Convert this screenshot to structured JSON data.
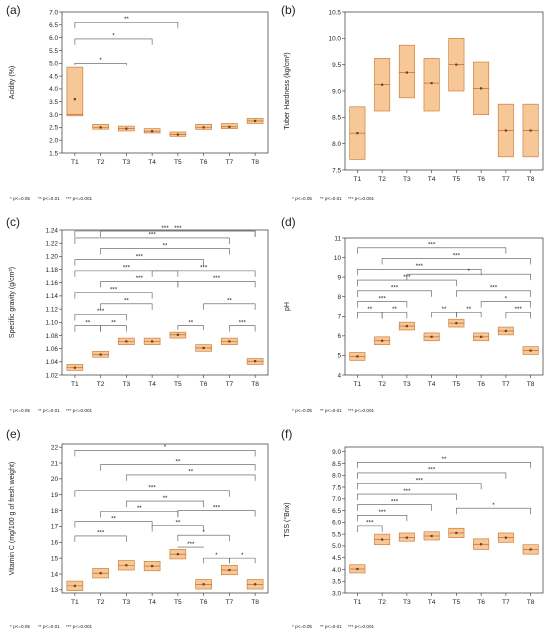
{
  "colors": {
    "box_fill": "#f7c897",
    "box_stroke": "#c9712c",
    "median": "#b35a1f",
    "mean": "#7a3a12",
    "axis": "#333333",
    "bracket": "#555555"
  },
  "footnote": {
    "p1": "* p<=0.05",
    "p2": "** p<=0.01",
    "p3": "*** p<=0.001"
  },
  "chart_data": [
    {
      "type": "box",
      "panel_label": "(a)",
      "ylabel": "Acidity (%)",
      "ylim": [
        1.5,
        7.0
      ],
      "yticks": [
        1.5,
        2.0,
        2.5,
        3.0,
        3.5,
        4.0,
        4.5,
        5.0,
        5.5,
        6.0,
        6.5,
        7.0
      ],
      "tick_decimals": 1,
      "categories": [
        "T1",
        "T2",
        "T3",
        "T4",
        "T5",
        "T6",
        "T7",
        "T8"
      ],
      "boxes": [
        {
          "q1": 2.95,
          "q3": 4.85,
          "median": 3.0,
          "mean": 3.6
        },
        {
          "q1": 2.43,
          "q3": 2.62,
          "median": 2.5,
          "mean": 2.5
        },
        {
          "q1": 2.36,
          "q3": 2.55,
          "median": 2.45,
          "mean": 2.45
        },
        {
          "q1": 2.28,
          "q3": 2.45,
          "median": 2.35,
          "mean": 2.35
        },
        {
          "q1": 2.15,
          "q3": 2.32,
          "median": 2.22,
          "mean": 2.22
        },
        {
          "q1": 2.42,
          "q3": 2.62,
          "median": 2.5,
          "mean": 2.5
        },
        {
          "q1": 2.45,
          "q3": 2.65,
          "median": 2.52,
          "mean": 2.52
        },
        {
          "q1": 2.65,
          "q3": 2.85,
          "median": 2.75,
          "mean": 2.75
        }
      ],
      "comparisons": [
        {
          "a": "T1",
          "b": "T3",
          "sig": "*",
          "y": 5.0
        },
        {
          "a": "T1",
          "b": "T4",
          "sig": "*",
          "y": 5.95
        },
        {
          "a": "T1",
          "b": "T5",
          "sig": "**",
          "y": 6.6
        }
      ]
    },
    {
      "type": "box",
      "panel_label": "(b)",
      "ylabel": "Tuber Hardness (kg/cm²)",
      "ylim": [
        7.5,
        10.5
      ],
      "yticks": [
        7.5,
        8.0,
        8.5,
        9.0,
        9.5,
        10.0,
        10.5
      ],
      "tick_decimals": 1,
      "categories": [
        "T1",
        "T2",
        "T3",
        "T4",
        "T5",
        "T6",
        "T7",
        "T8"
      ],
      "boxes": [
        {
          "q1": 7.7,
          "q3": 8.7,
          "median": 8.2,
          "mean": 8.2
        },
        {
          "q1": 8.62,
          "q3": 9.62,
          "median": 9.12,
          "mean": 9.12
        },
        {
          "q1": 8.87,
          "q3": 9.87,
          "median": 9.35,
          "mean": 9.35
        },
        {
          "q1": 8.62,
          "q3": 9.62,
          "median": 9.15,
          "mean": 9.15
        },
        {
          "q1": 9.0,
          "q3": 10.0,
          "median": 9.5,
          "mean": 9.5
        },
        {
          "q1": 8.55,
          "q3": 9.55,
          "median": 9.05,
          "mean": 9.05
        },
        {
          "q1": 7.75,
          "q3": 8.75,
          "median": 8.25,
          "mean": 8.25
        },
        {
          "q1": 7.75,
          "q3": 8.75,
          "median": 8.25,
          "mean": 8.25
        }
      ],
      "comparisons": []
    },
    {
      "type": "box",
      "panel_label": "(c)",
      "ylabel": "Specific gravity (g/cm³)",
      "ylim": [
        1.02,
        1.24
      ],
      "yticks": [
        1.02,
        1.04,
        1.06,
        1.08,
        1.1,
        1.12,
        1.14,
        1.16,
        1.18,
        1.2,
        1.22,
        1.24
      ],
      "tick_decimals": 2,
      "categories": [
        "T1",
        "T2",
        "T3",
        "T4",
        "T5",
        "T6",
        "T7",
        "T8"
      ],
      "boxes": [
        {
          "q1": 1.027,
          "q3": 1.036,
          "median": 1.031,
          "mean": 1.031
        },
        {
          "q1": 1.047,
          "q3": 1.056,
          "median": 1.051,
          "mean": 1.051
        },
        {
          "q1": 1.066,
          "q3": 1.076,
          "median": 1.071,
          "mean": 1.071
        },
        {
          "q1": 1.066,
          "q3": 1.076,
          "median": 1.071,
          "mean": 1.071
        },
        {
          "q1": 1.076,
          "q3": 1.085,
          "median": 1.081,
          "mean": 1.081
        },
        {
          "q1": 1.056,
          "q3": 1.066,
          "median": 1.061,
          "mean": 1.061
        },
        {
          "q1": 1.066,
          "q3": 1.076,
          "median": 1.071,
          "mean": 1.071
        },
        {
          "q1": 1.036,
          "q3": 1.045,
          "median": 1.041,
          "mean": 1.041
        }
      ],
      "comparisons": [
        {
          "a": "T1",
          "b": "T2",
          "sig": "**",
          "y": 1.095
        },
        {
          "a": "T2",
          "b": "T3",
          "sig": "**",
          "y": 1.095
        },
        {
          "a": "T1",
          "b": "T3",
          "sig": "***",
          "y": 1.112
        },
        {
          "a": "T2",
          "b": "T4",
          "sig": "**",
          "y": 1.128
        },
        {
          "a": "T1",
          "b": "T4",
          "sig": "***",
          "y": 1.145
        },
        {
          "a": "T2",
          "b": "T5",
          "sig": "***",
          "y": 1.162
        },
        {
          "a": "T1",
          "b": "T5",
          "sig": "***",
          "y": 1.178
        },
        {
          "a": "T1",
          "b": "T6",
          "sig": "***",
          "y": 1.195
        },
        {
          "a": "T2",
          "b": "T7",
          "sig": "**",
          "y": 1.212
        },
        {
          "a": "T1",
          "b": "T7",
          "sig": "***",
          "y": 1.228
        },
        {
          "a": "T2",
          "b": "T8",
          "sig": "***",
          "y": 1.245
        },
        {
          "a": "T1",
          "b": "T8",
          "sig": "***",
          "y": 1.262
        },
        {
          "a": "T5",
          "b": "T6",
          "sig": "**",
          "y": 1.095
        },
        {
          "a": "T7",
          "b": "T8",
          "sig": "***",
          "y": 1.095
        },
        {
          "a": "T6",
          "b": "T8",
          "sig": "**",
          "y": 1.128
        },
        {
          "a": "T5",
          "b": "T8",
          "sig": "***",
          "y": 1.162
        },
        {
          "a": "T4",
          "b": "T8",
          "sig": "***",
          "y": 1.178
        }
      ]
    },
    {
      "type": "box",
      "panel_label": "(d)",
      "ylabel": "pH",
      "ylim": [
        4,
        11
      ],
      "yticks": [
        4,
        5,
        6,
        7,
        8,
        9,
        10,
        11
      ],
      "tick_decimals": 0,
      "categories": [
        "T1",
        "T2",
        "T3",
        "T4",
        "T5",
        "T6",
        "T7",
        "T8"
      ],
      "boxes": [
        {
          "q1": 4.75,
          "q3": 5.15,
          "median": 4.95,
          "mean": 4.95
        },
        {
          "q1": 5.55,
          "q3": 5.95,
          "median": 5.75,
          "mean": 5.75
        },
        {
          "q1": 6.3,
          "q3": 6.7,
          "median": 6.5,
          "mean": 6.5
        },
        {
          "q1": 5.75,
          "q3": 6.15,
          "median": 5.95,
          "mean": 5.95
        },
        {
          "q1": 6.45,
          "q3": 6.85,
          "median": 6.65,
          "mean": 6.65
        },
        {
          "q1": 5.75,
          "q3": 6.15,
          "median": 5.95,
          "mean": 5.95
        },
        {
          "q1": 6.05,
          "q3": 6.45,
          "median": 6.25,
          "mean": 6.25
        },
        {
          "q1": 5.05,
          "q3": 5.45,
          "median": 5.25,
          "mean": 5.25
        }
      ],
      "comparisons": [
        {
          "a": "T1",
          "b": "T2",
          "sig": "**",
          "y": 7.2
        },
        {
          "a": "T2",
          "b": "T3",
          "sig": "**",
          "y": 7.2
        },
        {
          "a": "T1",
          "b": "T3",
          "sig": "***",
          "y": 7.75
        },
        {
          "a": "T1",
          "b": "T4",
          "sig": "***",
          "y": 8.3
        },
        {
          "a": "T1",
          "b": "T5",
          "sig": "***",
          "y": 8.85
        },
        {
          "a": "T1",
          "b": "T6",
          "sig": "***",
          "y": 9.4
        },
        {
          "a": "T1",
          "b": "T7",
          "sig": "***",
          "y": 10.5
        },
        {
          "a": "T2",
          "b": "T8",
          "sig": "***",
          "y": 9.95
        },
        {
          "a": "T3",
          "b": "T8",
          "sig": "*",
          "y": 9.15
        },
        {
          "a": "T4",
          "b": "T5",
          "sig": "**",
          "y": 7.2
        },
        {
          "a": "T5",
          "b": "T6",
          "sig": "**",
          "y": 7.2
        },
        {
          "a": "T7",
          "b": "T8",
          "sig": "***",
          "y": 7.2
        },
        {
          "a": "T6",
          "b": "T8",
          "sig": "*",
          "y": 7.75
        },
        {
          "a": "T5",
          "b": "T8",
          "sig": "***",
          "y": 8.3
        }
      ]
    },
    {
      "type": "box",
      "panel_label": "(e)",
      "ylabel": "Vitamin C (mg/100 g of fresh weight)",
      "ylim": [
        12.8,
        22.2
      ],
      "yticks": [
        13,
        14,
        15,
        16,
        17,
        18,
        19,
        20,
        21,
        22
      ],
      "tick_decimals": 0,
      "categories": [
        "T1",
        "T2",
        "T3",
        "T4",
        "T5",
        "T6",
        "T7",
        "T8"
      ],
      "boxes": [
        {
          "q1": 12.95,
          "q3": 13.55,
          "median": 13.25,
          "mean": 13.25
        },
        {
          "q1": 13.75,
          "q3": 14.35,
          "median": 14.05,
          "mean": 14.05
        },
        {
          "q1": 14.25,
          "q3": 14.85,
          "median": 14.55,
          "mean": 14.55
        },
        {
          "q1": 14.2,
          "q3": 14.8,
          "median": 14.5,
          "mean": 14.5
        },
        {
          "q1": 14.95,
          "q3": 15.55,
          "median": 15.25,
          "mean": 15.25
        },
        {
          "q1": 13.05,
          "q3": 13.65,
          "median": 13.35,
          "mean": 13.35
        },
        {
          "q1": 13.95,
          "q3": 14.55,
          "median": 14.25,
          "mean": 14.25
        },
        {
          "q1": 13.05,
          "q3": 13.65,
          "median": 13.35,
          "mean": 13.35
        }
      ],
      "comparisons": [
        {
          "a": "T1",
          "b": "T3",
          "sig": "***",
          "y": 16.4
        },
        {
          "a": "T1",
          "b": "T4",
          "sig": "**",
          "y": 17.3
        },
        {
          "a": "T2",
          "b": "T5",
          "sig": "**",
          "y": 17.95
        },
        {
          "a": "T3",
          "b": "T6",
          "sig": "**",
          "y": 18.6
        },
        {
          "a": "T1",
          "b": "T7",
          "sig": "***",
          "y": 19.25
        },
        {
          "a": "T3",
          "b": "T8",
          "sig": "**",
          "y": 20.25
        },
        {
          "a": "T2",
          "b": "T8",
          "sig": "**",
          "y": 20.9
        },
        {
          "a": "T1",
          "b": "T8",
          "sig": "*",
          "y": 21.8
        },
        {
          "a": "T5",
          "b": "T6",
          "sig": "***",
          "y": 15.7
        },
        {
          "a": "T6",
          "b": "T7",
          "sig": "*",
          "y": 15.0
        },
        {
          "a": "T7",
          "b": "T8",
          "sig": "*",
          "y": 15.0
        },
        {
          "a": "T5",
          "b": "T7",
          "sig": "*",
          "y": 16.45
        },
        {
          "a": "T4",
          "b": "T6",
          "sig": "**",
          "y": 17.05
        },
        {
          "a": "T5",
          "b": "T8",
          "sig": "***",
          "y": 18.0
        }
      ]
    },
    {
      "type": "box",
      "panel_label": "(f)",
      "ylabel": "TSS (°Brix)",
      "ylim": [
        3.0,
        9.2
      ],
      "yticks": [
        3.0,
        3.5,
        4.0,
        4.5,
        5.0,
        5.5,
        6.0,
        6.5,
        7.0,
        7.5,
        8.0,
        8.5,
        9.0
      ],
      "tick_decimals": 1,
      "categories": [
        "T1",
        "T2",
        "T3",
        "T4",
        "T5",
        "T6",
        "T7",
        "T8"
      ],
      "boxes": [
        {
          "q1": 3.85,
          "q3": 4.2,
          "median": 4.02,
          "mean": 4.02
        },
        {
          "q1": 5.05,
          "q3": 5.5,
          "median": 5.27,
          "mean": 5.27
        },
        {
          "q1": 5.2,
          "q3": 5.55,
          "median": 5.35,
          "mean": 5.35
        },
        {
          "q1": 5.25,
          "q3": 5.6,
          "median": 5.42,
          "mean": 5.42
        },
        {
          "q1": 5.35,
          "q3": 5.75,
          "median": 5.55,
          "mean": 5.55
        },
        {
          "q1": 4.85,
          "q3": 5.3,
          "median": 5.07,
          "mean": 5.07
        },
        {
          "q1": 5.15,
          "q3": 5.55,
          "median": 5.35,
          "mean": 5.35
        },
        {
          "q1": 4.65,
          "q3": 5.05,
          "median": 4.85,
          "mean": 4.85
        }
      ],
      "comparisons": [
        {
          "a": "T1",
          "b": "T2",
          "sig": "***",
          "y": 5.85
        },
        {
          "a": "T1",
          "b": "T3",
          "sig": "***",
          "y": 6.3
        },
        {
          "a": "T1",
          "b": "T4",
          "sig": "***",
          "y": 6.75
        },
        {
          "a": "T1",
          "b": "T5",
          "sig": "***",
          "y": 7.2
        },
        {
          "a": "T1",
          "b": "T6",
          "sig": "***",
          "y": 7.65
        },
        {
          "a": "T1",
          "b": "T7",
          "sig": "***",
          "y": 8.1
        },
        {
          "a": "T1",
          "b": "T8",
          "sig": "**",
          "y": 8.55
        },
        {
          "a": "T5",
          "b": "T8",
          "sig": "*",
          "y": 6.6
        }
      ]
    }
  ]
}
